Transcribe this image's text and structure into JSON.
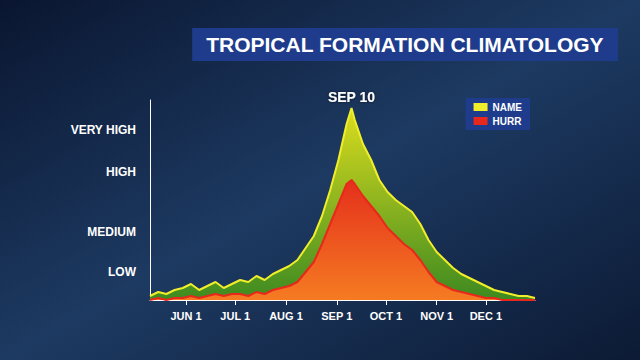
{
  "chart_data": {
    "type": "area",
    "title": "TROPICAL FORMATION CLIMATOLOGY",
    "x": [
      130,
      135,
      140,
      145,
      150,
      155,
      160,
      165,
      170,
      175,
      180,
      185,
      190,
      195,
      200,
      205,
      210,
      215,
      220,
      225,
      230,
      235,
      240,
      245,
      250,
      253,
      255,
      260,
      265,
      270,
      275,
      280,
      285,
      290,
      295,
      300,
      305,
      310,
      315,
      320,
      325,
      330,
      335,
      340,
      345,
      350,
      355,
      360,
      365
    ],
    "series": [
      {
        "name": "NAME",
        "color": "#f0ee2a",
        "values": [
          2,
          4,
          3,
          5,
          6,
          8,
          5,
          7,
          9,
          6,
          8,
          10,
          9,
          12,
          10,
          13,
          15,
          17,
          20,
          26,
          32,
          42,
          55,
          70,
          88,
          96,
          90,
          78,
          70,
          60,
          54,
          50,
          47,
          44,
          38,
          30,
          24,
          20,
          16,
          13,
          11,
          9,
          7,
          5,
          4,
          3,
          2,
          2,
          1
        ]
      },
      {
        "name": "HURR",
        "color": "#e8281c",
        "values": [
          0,
          1,
          0,
          1,
          1,
          2,
          1,
          2,
          3,
          2,
          3,
          3,
          2,
          4,
          3,
          5,
          6,
          7,
          9,
          14,
          19,
          28,
          38,
          48,
          58,
          60,
          58,
          52,
          47,
          42,
          36,
          32,
          28,
          25,
          20,
          14,
          9,
          7,
          5,
          4,
          3,
          2,
          1,
          1,
          0,
          0,
          0,
          0,
          0
        ]
      }
    ],
    "xlim": [
      130,
      365
    ],
    "xticks": [
      {
        "value": 152,
        "label": "JUN 1"
      },
      {
        "value": 182,
        "label": "JUL 1"
      },
      {
        "value": 213,
        "label": "AUG 1"
      },
      {
        "value": 244,
        "label": "SEP 1"
      },
      {
        "value": 274,
        "label": "OCT 1"
      },
      {
        "value": 305,
        "label": "NOV 1"
      },
      {
        "value": 335,
        "label": "DEC 1"
      }
    ],
    "ylim": [
      0,
      100
    ],
    "yticks": [
      {
        "value": 14,
        "label": "LOW"
      },
      {
        "value": 34,
        "label": "MEDIUM"
      },
      {
        "value": 64,
        "label": "HIGH"
      },
      {
        "value": 85,
        "label": "VERY HIGH"
      }
    ],
    "grid": false,
    "legend": "upper right",
    "stacked": false,
    "annotations": [
      {
        "text": "SEP 10",
        "x": 253,
        "y": 96
      }
    ]
  }
}
